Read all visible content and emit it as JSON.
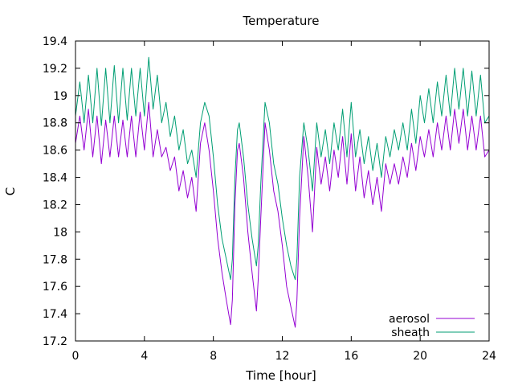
{
  "chart_data": {
    "type": "line",
    "title": "Temperature",
    "xlabel": "Time [hour]",
    "ylabel": "C",
    "xlim": [
      0,
      24
    ],
    "ylim": [
      17.2,
      19.4
    ],
    "xticks": [
      0,
      4,
      8,
      12,
      16,
      20,
      24
    ],
    "yticks": [
      17.2,
      17.4,
      17.6,
      17.8,
      18.0,
      18.2,
      18.4,
      18.6,
      18.8,
      19.0,
      19.2,
      19.4
    ],
    "ytick_labels": [
      "17.2",
      "17.4",
      "17.6",
      "17.8",
      "18",
      "18.2",
      "18.4",
      "18.6",
      "18.8",
      "19",
      "19.2",
      "19.4"
    ],
    "grid": false,
    "legend_position": "bottom-right",
    "series": [
      {
        "name": "aerosol",
        "color": "#9400d3",
        "x": [
          0.0,
          0.25,
          0.5,
          0.75,
          1.0,
          1.25,
          1.5,
          1.75,
          2.0,
          2.25,
          2.5,
          2.75,
          3.0,
          3.25,
          3.5,
          3.75,
          4.0,
          4.25,
          4.5,
          4.75,
          5.0,
          5.25,
          5.5,
          5.75,
          6.0,
          6.25,
          6.5,
          6.75,
          7.0,
          7.25,
          7.5,
          7.75,
          8.0,
          8.25,
          8.5,
          8.75,
          9.0,
          9.1,
          9.25,
          9.4,
          9.5,
          9.75,
          10.0,
          10.25,
          10.5,
          10.6,
          10.75,
          11.0,
          11.25,
          11.5,
          11.75,
          12.0,
          12.25,
          12.5,
          12.75,
          12.85,
          13.0,
          13.25,
          13.5,
          13.75,
          14.0,
          14.25,
          14.5,
          14.75,
          15.0,
          15.25,
          15.5,
          15.75,
          16.0,
          16.25,
          16.5,
          16.75,
          17.0,
          17.25,
          17.5,
          17.75,
          18.0,
          18.25,
          18.5,
          18.75,
          19.0,
          19.25,
          19.5,
          19.75,
          20.0,
          20.25,
          20.5,
          20.75,
          21.0,
          21.25,
          21.5,
          21.75,
          22.0,
          22.25,
          22.5,
          22.75,
          23.0,
          23.25,
          23.5,
          23.75,
          24.0
        ],
        "y": [
          18.65,
          18.85,
          18.6,
          18.9,
          18.55,
          18.85,
          18.5,
          18.82,
          18.55,
          18.85,
          18.55,
          18.82,
          18.55,
          18.85,
          18.55,
          18.88,
          18.6,
          18.95,
          18.55,
          18.75,
          18.55,
          18.62,
          18.45,
          18.55,
          18.3,
          18.45,
          18.25,
          18.4,
          18.15,
          18.65,
          18.8,
          18.6,
          18.3,
          17.95,
          17.7,
          17.5,
          17.32,
          17.5,
          18.2,
          18.6,
          18.65,
          18.4,
          18.0,
          17.7,
          17.42,
          17.65,
          18.1,
          18.8,
          18.6,
          18.3,
          18.15,
          17.9,
          17.6,
          17.45,
          17.3,
          17.5,
          18.1,
          18.7,
          18.4,
          18.0,
          18.62,
          18.35,
          18.55,
          18.3,
          18.6,
          18.4,
          18.7,
          18.35,
          18.72,
          18.3,
          18.55,
          18.25,
          18.45,
          18.2,
          18.4,
          18.15,
          18.5,
          18.35,
          18.5,
          18.35,
          18.55,
          18.4,
          18.65,
          18.45,
          18.7,
          18.55,
          18.75,
          18.55,
          18.8,
          18.6,
          18.85,
          18.6,
          18.9,
          18.65,
          18.9,
          18.6,
          18.85,
          18.6,
          18.85,
          18.55,
          18.6
        ]
      },
      {
        "name": "sheath",
        "color": "#009e73",
        "x": [
          0.0,
          0.25,
          0.5,
          0.75,
          1.0,
          1.25,
          1.5,
          1.75,
          2.0,
          2.25,
          2.5,
          2.75,
          3.0,
          3.25,
          3.5,
          3.75,
          4.0,
          4.25,
          4.5,
          4.75,
          5.0,
          5.25,
          5.5,
          5.75,
          6.0,
          6.25,
          6.5,
          6.75,
          7.0,
          7.25,
          7.5,
          7.75,
          8.0,
          8.25,
          8.5,
          8.75,
          9.0,
          9.1,
          9.25,
          9.4,
          9.5,
          9.75,
          10.0,
          10.25,
          10.5,
          10.6,
          10.75,
          11.0,
          11.25,
          11.5,
          11.75,
          12.0,
          12.25,
          12.5,
          12.75,
          12.85,
          13.0,
          13.25,
          13.5,
          13.75,
          14.0,
          14.25,
          14.5,
          14.75,
          15.0,
          15.25,
          15.5,
          15.75,
          16.0,
          16.25,
          16.5,
          16.75,
          17.0,
          17.25,
          17.5,
          17.75,
          18.0,
          18.25,
          18.5,
          18.75,
          19.0,
          19.25,
          19.5,
          19.75,
          20.0,
          20.25,
          20.5,
          20.75,
          21.0,
          21.25,
          21.5,
          21.75,
          22.0,
          22.25,
          22.5,
          22.75,
          23.0,
          23.25,
          23.5,
          23.75,
          24.0
        ],
        "y": [
          18.85,
          19.1,
          18.8,
          19.15,
          18.8,
          19.2,
          18.78,
          19.2,
          18.8,
          19.22,
          18.8,
          19.2,
          18.82,
          19.2,
          18.85,
          19.2,
          18.85,
          19.28,
          18.9,
          19.15,
          18.8,
          18.95,
          18.7,
          18.85,
          18.6,
          18.75,
          18.5,
          18.6,
          18.4,
          18.8,
          18.95,
          18.85,
          18.55,
          18.2,
          17.95,
          17.8,
          17.65,
          17.8,
          18.4,
          18.75,
          18.8,
          18.55,
          18.2,
          17.95,
          17.75,
          17.9,
          18.35,
          18.95,
          18.8,
          18.5,
          18.35,
          18.1,
          17.9,
          17.75,
          17.65,
          17.8,
          18.4,
          18.8,
          18.6,
          18.3,
          18.8,
          18.55,
          18.75,
          18.5,
          18.8,
          18.6,
          18.9,
          18.55,
          18.95,
          18.55,
          18.75,
          18.5,
          18.7,
          18.45,
          18.65,
          18.4,
          18.7,
          18.55,
          18.75,
          18.6,
          18.8,
          18.6,
          18.9,
          18.65,
          19.0,
          18.8,
          19.05,
          18.8,
          19.1,
          18.85,
          19.15,
          18.85,
          19.2,
          18.9,
          19.2,
          18.85,
          19.18,
          18.85,
          19.15,
          18.8,
          18.85
        ]
      }
    ]
  }
}
